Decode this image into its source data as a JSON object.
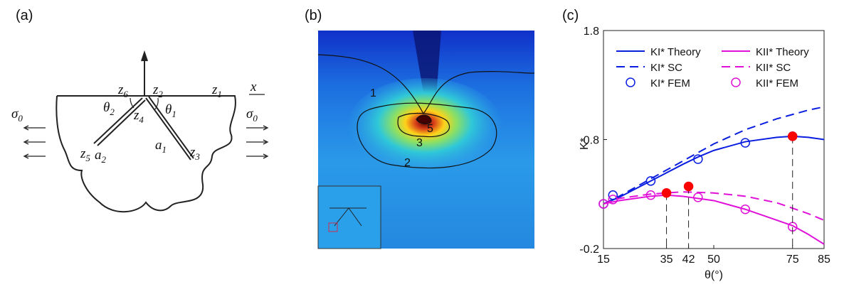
{
  "panel_a": {
    "label": "(a)",
    "labels": [
      {
        "base": "z",
        "sub": "6"
      },
      {
        "base": "z",
        "sub": "2"
      },
      {
        "base": "z",
        "sub": "1"
      },
      {
        "base": "θ",
        "sub": "2"
      },
      {
        "base": "z",
        "sub": "4"
      },
      {
        "base": "θ",
        "sub": "1"
      },
      {
        "base": "a",
        "sub": "2"
      },
      {
        "base": "a",
        "sub": "1"
      },
      {
        "base": "z",
        "sub": "5"
      },
      {
        "base": "z",
        "sub": "3"
      },
      {
        "base": "σ",
        "sub": "0"
      },
      {
        "base": "σ",
        "sub": "0"
      }
    ],
    "axis": "x"
  },
  "panel_b": {
    "label": "(b)",
    "contour_labels": [
      "1",
      "2",
      "3",
      "5"
    ]
  },
  "panel_c_label": "(c)",
  "chart_data": {
    "type": "line",
    "xlabel": "θ(°)",
    "ylabel": "K*",
    "xlim": [
      15,
      85
    ],
    "ylim": [
      -0.2,
      1.8
    ],
    "xticks": [
      15,
      35,
      42,
      50,
      75,
      85
    ],
    "yticks": [
      -0.2,
      0.8,
      1.8
    ],
    "series": [
      {
        "name": "KI* Theory",
        "color": "#0a1ee0",
        "style": "solid",
        "x": [
          15,
          20,
          30,
          40,
          45,
          50,
          60,
          70,
          75,
          80,
          85
        ],
        "values": [
          0.21,
          0.27,
          0.42,
          0.57,
          0.64,
          0.7,
          0.78,
          0.82,
          0.83,
          0.82,
          0.8
        ]
      },
      {
        "name": "KI* SC",
        "color": "#0a1ee0",
        "style": "dashed",
        "x": [
          15,
          20,
          30,
          40,
          50,
          60,
          70,
          80,
          85
        ],
        "values": [
          0.21,
          0.28,
          0.44,
          0.6,
          0.76,
          0.89,
          0.99,
          1.07,
          1.1
        ]
      },
      {
        "name": "KI* FEM",
        "color": "#0a1ee0",
        "style": "markers",
        "x": [
          15,
          18,
          30,
          45,
          60,
          75
        ],
        "values": [
          0.21,
          0.29,
          0.42,
          0.62,
          0.77,
          0.83
        ]
      },
      {
        "name": "KII* Theory",
        "color": "#e010d8",
        "style": "solid",
        "x": [
          15,
          20,
          30,
          35,
          40,
          50,
          60,
          70,
          75,
          80,
          85
        ],
        "values": [
          0.21,
          0.24,
          0.28,
          0.29,
          0.28,
          0.24,
          0.16,
          0.06,
          0.01,
          -0.07,
          -0.16
        ]
      },
      {
        "name": "KII* SC",
        "color": "#e010d8",
        "style": "dashed",
        "x": [
          15,
          20,
          30,
          40,
          50,
          60,
          70,
          80,
          85
        ],
        "values": [
          0.21,
          0.26,
          0.3,
          0.32,
          0.31,
          0.28,
          0.22,
          0.12,
          0.06
        ]
      },
      {
        "name": "KII* FEM",
        "color": "#e010d8",
        "style": "markers",
        "x": [
          15,
          18,
          30,
          45,
          60,
          75
        ],
        "values": [
          0.21,
          0.25,
          0.29,
          0.27,
          0.16,
          0.0
        ]
      },
      {
        "color": "#ff0000",
        "style": "filled",
        "x": [
          35,
          42,
          75
        ],
        "values": [
          0.31,
          0.37,
          0.83
        ]
      }
    ]
  }
}
